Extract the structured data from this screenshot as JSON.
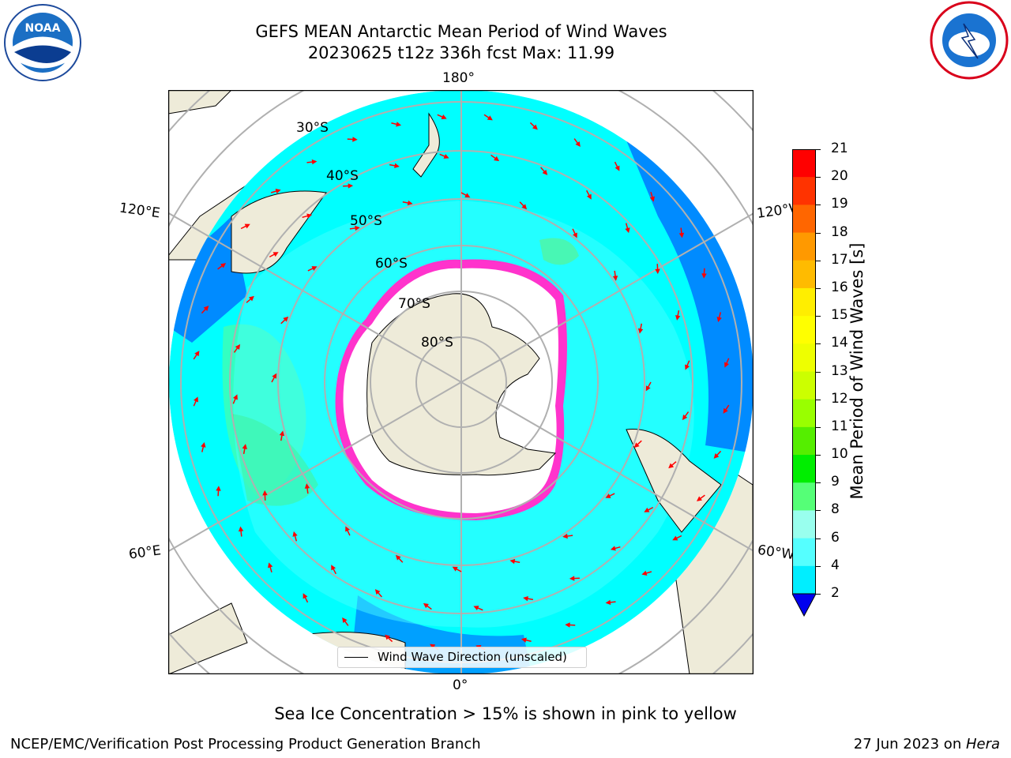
{
  "title": {
    "line1": "GEFS MEAN Antarctic Mean Period of Wind Waves",
    "line2": "20230625 t12z 336h fcst   Max: 11.99"
  },
  "logos": {
    "noara_left": "noaa-logo",
    "nws_right": "nws-logo",
    "noaa_text": "NOAA"
  },
  "map": {
    "longitude_labels": [
      "180°",
      "120°E",
      "120°W",
      "60°E",
      "60°W",
      "0°"
    ],
    "latitude_labels": [
      "30°S",
      "40°S",
      "50°S",
      "60°S",
      "70°S",
      "80°S"
    ],
    "legend_label": "Wind Wave Direction (unscaled)",
    "colors": {
      "ocean_low": "#00ffff",
      "ocean_mid": "#4dffff",
      "ocean_high": "#00e5ff",
      "deep": "#0077ff",
      "land": "#eeebd9",
      "ice": "#ffffff",
      "ice_edge": "#ff33cc",
      "arrow": "#ff0000"
    }
  },
  "colorbar": {
    "label": "Mean Period of Wind Waves [s]",
    "ticks": [
      "21",
      "20",
      "19",
      "18",
      "17",
      "16",
      "15",
      "14",
      "13",
      "12",
      "11",
      "10",
      "9",
      "8",
      "6",
      "4",
      "2"
    ],
    "colors_top_to_bottom": [
      "#ff0000",
      "#ff3300",
      "#ff6600",
      "#ff9900",
      "#ffbb00",
      "#ffee00",
      "#ffff00",
      "#eeff00",
      "#ccff00",
      "#99ff00",
      "#55ee00",
      "#00ee00",
      "#55ff77",
      "#99ffee",
      "#55ffff",
      "#00eeff",
      "#0077ff"
    ],
    "extend_color": "#0000ee"
  },
  "subtitle": "Sea Ice Concentration > 15% is shown in pink to yellow",
  "footer": {
    "left": "NCEP/EMC/Verification Post Processing Product Generation Branch",
    "date": "27 Jun 2023 on ",
    "host": "Hera"
  }
}
